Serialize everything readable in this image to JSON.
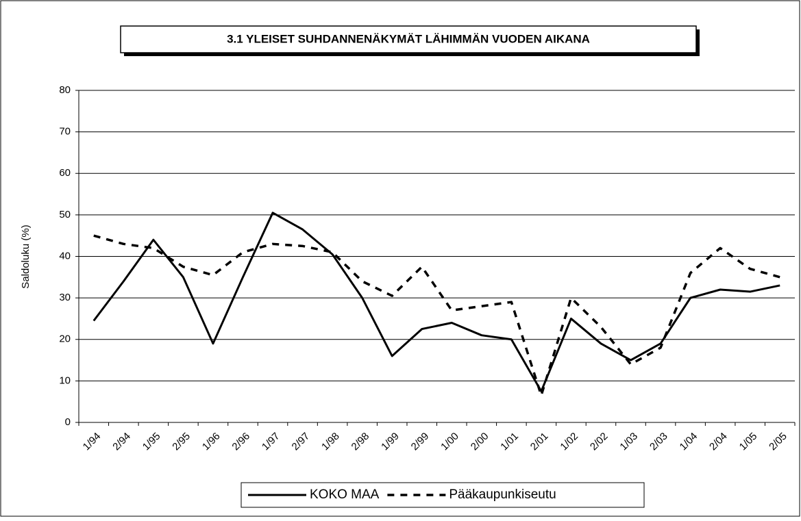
{
  "chart_data": {
    "type": "line",
    "title": "3.1 YLEISET SUHDANNENÄKYMÄT LÄHIMMÄN VUODEN AIKANA",
    "y_label": "Saldoluku (%)",
    "categories": [
      "1/94",
      "2/94",
      "1/95",
      "2/95",
      "1/96",
      "2/96",
      "1/97",
      "2/97",
      "1/98",
      "2/98",
      "1/99",
      "2/99",
      "1/00",
      "2/00",
      "1/01",
      "2/01",
      "1/02",
      "2/02",
      "1/03",
      "2/03",
      "1/04",
      "2/04",
      "1/05",
      "2/05"
    ],
    "series": [
      {
        "name": "KOKO MAA",
        "color": "#000000",
        "dash": false,
        "values": [
          24.5,
          34,
          44,
          35,
          19,
          35,
          50.5,
          46.5,
          40.5,
          30,
          16,
          22.5,
          24,
          21,
          20,
          7.5,
          25,
          19,
          15,
          19,
          30,
          32,
          31.5,
          33
        ]
      },
      {
        "name": "Pääkaupunkiseutu",
        "color": "#000000",
        "dash": true,
        "values": [
          45,
          43,
          42,
          37.5,
          35.5,
          41,
          43,
          42.5,
          41,
          34,
          30.5,
          37.5,
          27,
          28,
          29,
          6.5,
          30,
          23,
          14,
          18,
          36,
          42,
          37,
          35
        ]
      }
    ],
    "ylim": [
      0,
      80
    ],
    "yticks": [
      0,
      10,
      20,
      30,
      40,
      50,
      60,
      70,
      80
    ],
    "grid": true
  }
}
